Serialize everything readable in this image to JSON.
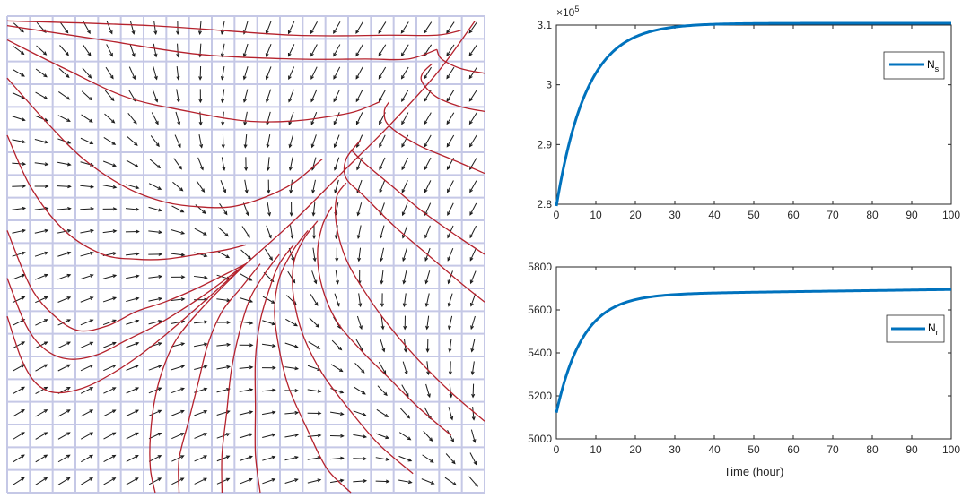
{
  "chart_data": [
    {
      "type": "vector-field",
      "description_free": true,
      "grid": {
        "cols": 21,
        "rows": 21
      },
      "attractor": [
        0.98,
        0.99
      ],
      "manifold_start": [
        0.33,
        0.31
      ],
      "field_color": "#1a1a1a",
      "trajectory_color": "#b5222d",
      "grid_color": "#c5c8e6",
      "trajectories": [
        {
          "points": [
            [
              0.0,
              0.63
            ],
            [
              0.03,
              0.72
            ],
            [
              0.06,
              0.77
            ],
            [
              0.1,
              0.79
            ],
            [
              0.16,
              0.78
            ],
            [
              0.22,
              0.75
            ],
            [
              0.28,
              0.71
            ],
            [
              0.33,
              0.67
            ],
            [
              0.4,
              0.61
            ],
            [
              0.5,
              0.52
            ],
            [
              0.6,
              0.43
            ],
            [
              0.7,
              0.33
            ],
            [
              0.8,
              0.23
            ],
            [
              0.9,
              0.12
            ],
            [
              0.98,
              0.01
            ]
          ]
        },
        {
          "points": [
            [
              0.0,
              0.55
            ],
            [
              0.04,
              0.65
            ],
            [
              0.08,
              0.7
            ],
            [
              0.13,
              0.72
            ],
            [
              0.19,
              0.71
            ],
            [
              0.25,
              0.68
            ],
            [
              0.31,
              0.65
            ],
            [
              0.36,
              0.62
            ],
            [
              0.42,
              0.58
            ],
            [
              0.5,
              0.52
            ]
          ]
        },
        {
          "points": [
            [
              0.0,
              0.45
            ],
            [
              0.05,
              0.57
            ],
            [
              0.1,
              0.63
            ],
            [
              0.15,
              0.66
            ],
            [
              0.21,
              0.65
            ],
            [
              0.27,
              0.62
            ],
            [
              0.33,
              0.6
            ],
            [
              0.4,
              0.57
            ],
            [
              0.5,
              0.52
            ]
          ]
        },
        {
          "points": [
            [
              0.0,
              0.25
            ],
            [
              0.05,
              0.36
            ],
            [
              0.12,
              0.45
            ],
            [
              0.2,
              0.5
            ],
            [
              0.27,
              0.51
            ],
            [
              0.33,
              0.51
            ],
            [
              0.4,
              0.5
            ],
            [
              0.46,
              0.49
            ],
            [
              0.5,
              0.48
            ]
          ]
        },
        {
          "points": [
            [
              0.0,
              0.13
            ],
            [
              0.08,
              0.22
            ],
            [
              0.16,
              0.3
            ],
            [
              0.25,
              0.36
            ],
            [
              0.33,
              0.39
            ],
            [
              0.4,
              0.4
            ],
            [
              0.47,
              0.4
            ],
            [
              0.54,
              0.38
            ],
            [
              0.6,
              0.35
            ],
            [
              0.66,
              0.3
            ]
          ]
        },
        {
          "points": [
            [
              0.0,
              0.05
            ],
            [
              0.12,
              0.11
            ],
            [
              0.25,
              0.17
            ],
            [
              0.38,
              0.2
            ],
            [
              0.5,
              0.22
            ],
            [
              0.6,
              0.22
            ],
            [
              0.68,
              0.21
            ],
            [
              0.73,
              0.2
            ],
            [
              0.78,
              0.18
            ]
          ]
        },
        {
          "points": [
            [
              0.0,
              0.02
            ],
            [
              0.2,
              0.05
            ],
            [
              0.4,
              0.08
            ],
            [
              0.6,
              0.09
            ],
            [
              0.75,
              0.09
            ],
            [
              0.84,
              0.09
            ],
            [
              0.9,
              0.07
            ]
          ]
        },
        {
          "points": [
            [
              0.0,
              0.01
            ],
            [
              0.3,
              0.02
            ],
            [
              0.6,
              0.04
            ],
            [
              0.8,
              0.04
            ],
            [
              0.9,
              0.04
            ],
            [
              0.95,
              0.03
            ]
          ]
        },
        {
          "points": [
            [
              0.31,
              1.0
            ],
            [
              0.3,
              0.95
            ],
            [
              0.3,
              0.88
            ],
            [
              0.31,
              0.8
            ],
            [
              0.33,
              0.73
            ],
            [
              0.36,
              0.67
            ],
            [
              0.42,
              0.6
            ],
            [
              0.5,
              0.52
            ]
          ]
        },
        {
          "points": [
            [
              0.36,
              1.0
            ],
            [
              0.36,
              0.93
            ],
            [
              0.38,
              0.85
            ],
            [
              0.4,
              0.77
            ],
            [
              0.42,
              0.69
            ],
            [
              0.45,
              0.62
            ],
            [
              0.49,
              0.57
            ],
            [
              0.53,
              0.52
            ]
          ]
        },
        {
          "points": [
            [
              0.45,
              1.0
            ],
            [
              0.45,
              0.92
            ],
            [
              0.46,
              0.83
            ],
            [
              0.47,
              0.74
            ],
            [
              0.49,
              0.65
            ],
            [
              0.51,
              0.59
            ],
            [
              0.54,
              0.54
            ],
            [
              0.57,
              0.5
            ]
          ]
        },
        {
          "points": [
            [
              0.53,
              1.0
            ],
            [
              0.52,
              0.92
            ],
            [
              0.52,
              0.82
            ],
            [
              0.52,
              0.72
            ],
            [
              0.53,
              0.64
            ],
            [
              0.55,
              0.57
            ],
            [
              0.57,
              0.52
            ],
            [
              0.6,
              0.48
            ]
          ]
        },
        {
          "points": [
            [
              0.72,
              1.0
            ],
            [
              0.67,
              0.95
            ],
            [
              0.63,
              0.87
            ],
            [
              0.59,
              0.78
            ],
            [
              0.57,
              0.7
            ],
            [
              0.56,
              0.62
            ],
            [
              0.57,
              0.55
            ],
            [
              0.6,
              0.49
            ],
            [
              0.63,
              0.45
            ]
          ]
        },
        {
          "points": [
            [
              0.85,
              0.96
            ],
            [
              0.78,
              0.9
            ],
            [
              0.72,
              0.83
            ],
            [
              0.66,
              0.75
            ],
            [
              0.62,
              0.67
            ],
            [
              0.6,
              0.59
            ],
            [
              0.6,
              0.52
            ],
            [
              0.62,
              0.47
            ],
            [
              0.65,
              0.43
            ]
          ]
        },
        {
          "points": [
            [
              0.93,
              0.88
            ],
            [
              0.86,
              0.82
            ],
            [
              0.8,
              0.76
            ],
            [
              0.74,
              0.7
            ],
            [
              0.69,
              0.64
            ],
            [
              0.66,
              0.57
            ],
            [
              0.65,
              0.5
            ],
            [
              0.66,
              0.44
            ],
            [
              0.68,
              0.4
            ]
          ]
        },
        {
          "points": [
            [
              1.0,
              0.85
            ],
            [
              0.93,
              0.79
            ],
            [
              0.86,
              0.72
            ],
            [
              0.8,
              0.65
            ],
            [
              0.75,
              0.58
            ],
            [
              0.71,
              0.51
            ],
            [
              0.69,
              0.44
            ],
            [
              0.69,
              0.38
            ],
            [
              0.71,
              0.35
            ]
          ]
        },
        {
          "points": [
            [
              1.0,
              0.6
            ],
            [
              0.95,
              0.56
            ],
            [
              0.88,
              0.5
            ],
            [
              0.81,
              0.44
            ],
            [
              0.75,
              0.38
            ],
            [
              0.71,
              0.34
            ],
            [
              0.71,
              0.3
            ],
            [
              0.74,
              0.26
            ]
          ]
        },
        {
          "points": [
            [
              1.0,
              0.5
            ],
            [
              0.94,
              0.46
            ],
            [
              0.87,
              0.41
            ],
            [
              0.81,
              0.36
            ],
            [
              0.75,
              0.31
            ],
            [
              0.72,
              0.28
            ]
          ]
        },
        {
          "points": [
            [
              1.0,
              0.33
            ],
            [
              0.93,
              0.3
            ],
            [
              0.86,
              0.27
            ],
            [
              0.8,
              0.23
            ],
            [
              0.79,
              0.2
            ],
            [
              0.8,
              0.18
            ]
          ]
        },
        {
          "points": [
            [
              1.0,
              0.2
            ],
            [
              0.95,
              0.19
            ],
            [
              0.9,
              0.17
            ],
            [
              0.87,
              0.14
            ],
            [
              0.87,
              0.12
            ],
            [
              0.89,
              0.1
            ]
          ]
        },
        {
          "points": [
            [
              1.0,
              0.12
            ],
            [
              0.95,
              0.11
            ],
            [
              0.91,
              0.09
            ],
            [
              0.9,
              0.07
            ]
          ]
        }
      ]
    },
    {
      "type": "line",
      "x_range": [
        0,
        100
      ],
      "ylim": [
        2.8,
        3.1
      ],
      "x_ticks": [
        "0",
        "10",
        "20",
        "30",
        "40",
        "50",
        "60",
        "70",
        "80",
        "90",
        "100"
      ],
      "y_ticks": [
        "2.8",
        "2.9",
        "3",
        "3.1"
      ],
      "y_exponent_base": "×10",
      "y_exponent_power": "5",
      "series": [
        {
          "name_main": "N",
          "name_sub": "s",
          "color": "#0072bd",
          "model": {
            "start": 2.797,
            "end": 3.103,
            "rate": 0.13
          }
        }
      ],
      "legend_position": "top-right"
    },
    {
      "type": "line",
      "x_range": [
        0,
        100
      ],
      "ylim": [
        5000,
        5800
      ],
      "x_ticks": [
        "0",
        "10",
        "20",
        "30",
        "40",
        "50",
        "60",
        "70",
        "80",
        "90",
        "100"
      ],
      "y_ticks": [
        "5000",
        "5200",
        "5400",
        "5600",
        "5800"
      ],
      "xlabel": "Time (hour)",
      "series": [
        {
          "name_main": "N",
          "name_sub": "r",
          "color": "#0072bd",
          "model": {
            "start": 5122,
            "plateau": 5670,
            "rate": 0.15,
            "drift": 0.25
          }
        }
      ],
      "legend_position": "right"
    }
  ]
}
